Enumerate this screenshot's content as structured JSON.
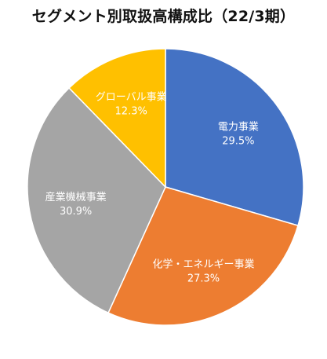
{
  "chart_data": {
    "type": "pie",
    "title": "セグメント別取扱高構成比（22/3期）",
    "start_angle_deg": 0,
    "direction": "clockwise",
    "slices": [
      {
        "label": "電力事業",
        "value": 29.5,
        "value_label": "29.5%",
        "color": "#4472C4"
      },
      {
        "label": "化学・エネルギー事業",
        "value": 27.3,
        "value_label": "27.3%",
        "color": "#ED7D31"
      },
      {
        "label": "産業機械事業",
        "value": 30.9,
        "value_label": "30.9%",
        "color": "#A5A5A5"
      },
      {
        "label": "グローバル事業",
        "value": 12.3,
        "value_label": "12.3%",
        "color": "#FFC000"
      }
    ],
    "legend": "none"
  }
}
